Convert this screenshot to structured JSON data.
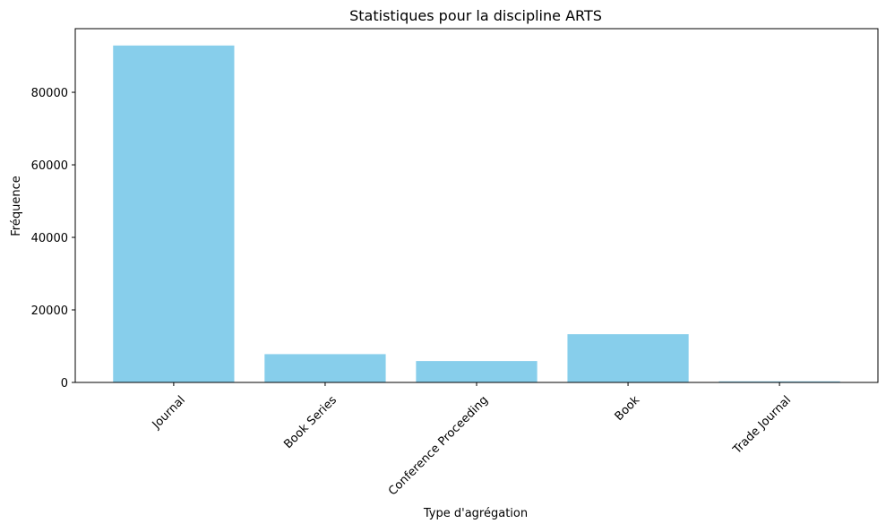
{
  "chart_data": {
    "type": "bar",
    "title": "Statistiques pour la discipline ARTS",
    "xlabel": "Type d'agrégation",
    "ylabel": "Fréquence",
    "categories": [
      "Journal",
      "Book Series",
      "Conference Proceeding",
      "Book",
      "Trade Journal"
    ],
    "values": [
      92900,
      7800,
      5900,
      13300,
      300
    ],
    "ylim": [
      0,
      97545
    ],
    "yticks": [
      0,
      20000,
      40000,
      60000,
      80000
    ],
    "ytick_labels": [
      "0",
      "20000",
      "40000",
      "60000",
      "80000"
    ],
    "x_tick_rotation_deg": 45,
    "bar_color": "#87CEEB",
    "grid": false,
    "legend": "none"
  }
}
